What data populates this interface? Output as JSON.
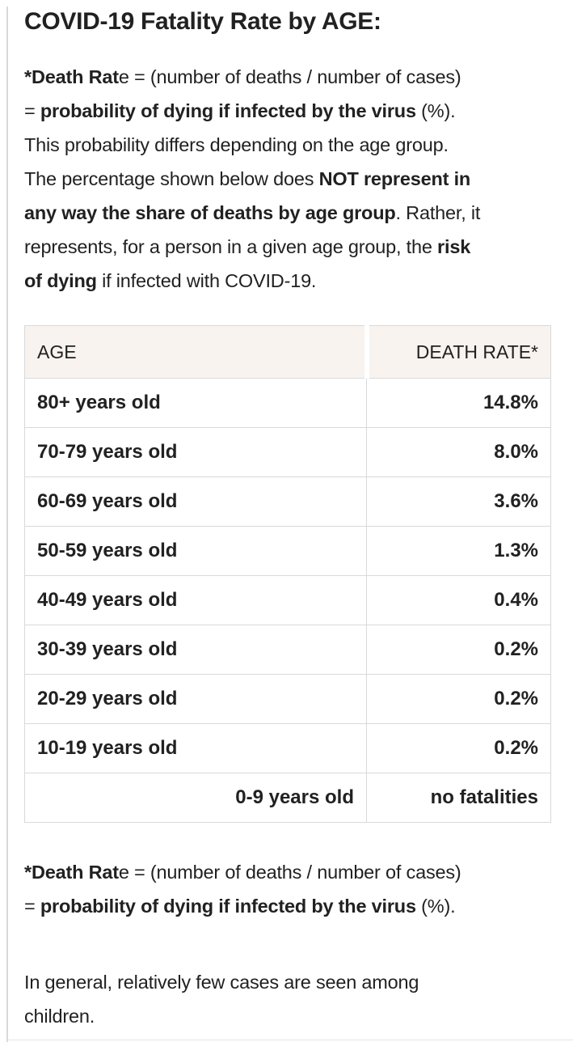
{
  "colors": {
    "text": "#212121",
    "header_bg": "#f8f3ef",
    "table_border": "#d9d9d9",
    "page_edge": "#d8d8d8"
  },
  "header": {
    "title": "COVID-19 Fatality Rate by AGE:"
  },
  "intro": {
    "runs": [
      {
        "t": "*Death Rat",
        "b": true
      },
      {
        "t": "e = (number of deaths / number of cases)\n= ",
        "b": false
      },
      {
        "t": "probability of dying if infected by the virus",
        "b": true
      },
      {
        "t": " (%).\nThis probability differs depending on the age group.\nThe percentage shown below does ",
        "b": false
      },
      {
        "t": "NOT represent in\nany way the share of deaths by age group",
        "b": true
      },
      {
        "t": ". Rather, it\nrepresents, for a person in a given age group, the ",
        "b": false
      },
      {
        "t": "risk\nof dying",
        "b": true
      },
      {
        "t": " if infected with COVID-19.",
        "b": false
      }
    ]
  },
  "fatality_table": {
    "columns": [
      {
        "label": "AGE",
        "align": "left"
      },
      {
        "label": "DEATH RATE*",
        "align": "right"
      }
    ],
    "rows": [
      {
        "age": "80+ years old",
        "rate": "14.8%",
        "age_align": "left"
      },
      {
        "age": "70-79 years old",
        "rate": "8.0%",
        "age_align": "left"
      },
      {
        "age": "60-69 years old",
        "rate": "3.6%",
        "age_align": "left"
      },
      {
        "age": "50-59 years old",
        "rate": "1.3%",
        "age_align": "left"
      },
      {
        "age": "40-49 years old",
        "rate": "0.4%",
        "age_align": "left"
      },
      {
        "age": "30-39 years old",
        "rate": "0.2%",
        "age_align": "left"
      },
      {
        "age": "20-29 years old",
        "rate": "0.2%",
        "age_align": "left"
      },
      {
        "age": "10-19 years old",
        "rate": "0.2%",
        "age_align": "left"
      },
      {
        "age": "0-9 years old",
        "rate": "no fatalities",
        "age_align": "right"
      }
    ]
  },
  "footnote": {
    "runs": [
      {
        "t": "*Death Rat",
        "b": true
      },
      {
        "t": "e = (number of deaths / number of cases)\n= ",
        "b": false
      },
      {
        "t": "probability of dying if infected by the virus",
        "b": true
      },
      {
        "t": " (%).",
        "b": false
      }
    ]
  },
  "closing": {
    "runs": [
      {
        "t": "In general, relatively few cases are seen among\nchildren.",
        "b": false
      }
    ]
  }
}
